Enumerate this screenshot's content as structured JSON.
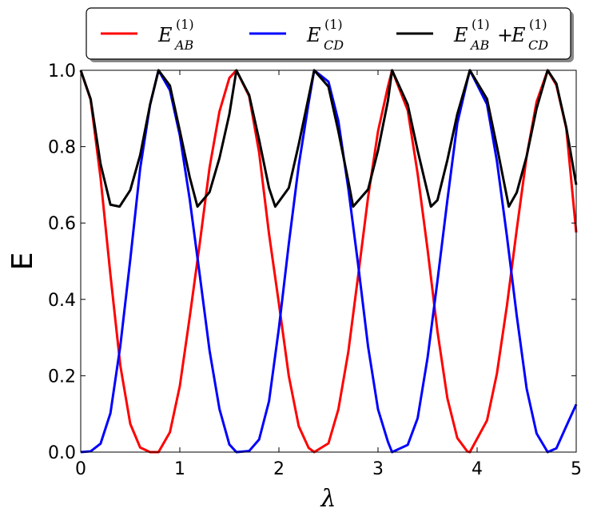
{
  "chart_data": {
    "type": "line",
    "xlabel": "λ",
    "ylabel": "E",
    "xlim": [
      0,
      5
    ],
    "ylim": [
      0,
      1
    ],
    "x_ticks": [
      "0",
      "1",
      "2",
      "3",
      "4",
      "5"
    ],
    "y_ticks": [
      "0.0",
      "0.2",
      "0.4",
      "0.6",
      "0.8",
      "1.0"
    ],
    "grid": false,
    "legend_placement": "top, outside plot, single row",
    "series": [
      {
        "key": "ab",
        "color": "#ff0000",
        "legend": {
          "base": "E",
          "sup": "(1)",
          "sub": "AB"
        },
        "formula": "cos^4(2λ)",
        "x": [
          0,
          0.1,
          0.2,
          0.3,
          0.4,
          0.5,
          0.6,
          0.7,
          0.785,
          0.9,
          1.0,
          1.1,
          1.2,
          1.3,
          1.4,
          1.5,
          1.571,
          1.7,
          1.8,
          1.9,
          2.0,
          2.1,
          2.2,
          2.3,
          2.356,
          2.5,
          2.6,
          2.7,
          2.8,
          2.9,
          3.0,
          3.1,
          3.142,
          3.3,
          3.4,
          3.5,
          3.6,
          3.7,
          3.8,
          3.9,
          3.927,
          4.1,
          4.2,
          4.3,
          4.4,
          4.5,
          4.6,
          4.712,
          4.8,
          4.9,
          5.0
        ],
        "y": [
          1,
          0.923,
          0.719,
          0.464,
          0.226,
          0.074,
          0.012,
          0.0,
          0.0,
          0.052,
          0.173,
          0.354,
          0.544,
          0.745,
          0.892,
          0.98,
          1.0,
          0.932,
          0.785,
          0.572,
          0.389,
          0.199,
          0.068,
          0.011,
          0.0,
          0.023,
          0.112,
          0.262,
          0.463,
          0.668,
          0.84,
          0.957,
          1.0,
          0.895,
          0.729,
          0.531,
          0.316,
          0.141,
          0.037,
          0.002,
          0.0,
          0.083,
          0.206,
          0.382,
          0.583,
          0.775,
          0.917,
          1.0,
          0.961,
          0.848,
          0.575
        ]
      },
      {
        "key": "cd",
        "color": "#0000ff",
        "legend": {
          "base": "E",
          "sup": "(1)",
          "sub": "CD"
        },
        "formula": "sin^4(2λ)",
        "x": [
          0,
          0.1,
          0.2,
          0.3,
          0.4,
          0.5,
          0.6,
          0.7,
          0.785,
          0.9,
          1.0,
          1.1,
          1.2,
          1.3,
          1.4,
          1.5,
          1.571,
          1.7,
          1.8,
          1.9,
          2.0,
          2.1,
          2.2,
          2.3,
          2.356,
          2.5,
          2.6,
          2.7,
          2.8,
          2.9,
          3.0,
          3.1,
          3.142,
          3.3,
          3.4,
          3.5,
          3.6,
          3.7,
          3.8,
          3.9,
          3.927,
          4.1,
          4.2,
          4.3,
          4.4,
          4.5,
          4.6,
          4.712,
          4.8,
          4.9,
          5.0
        ],
        "y": [
          0,
          0.002,
          0.022,
          0.102,
          0.279,
          0.504,
          0.743,
          0.91,
          1.0,
          0.948,
          0.83,
          0.662,
          0.466,
          0.266,
          0.113,
          0.02,
          0.0,
          0.003,
          0.033,
          0.133,
          0.325,
          0.546,
          0.751,
          0.915,
          1.0,
          0.97,
          0.867,
          0.691,
          0.49,
          0.276,
          0.112,
          0.027,
          0.0,
          0.019,
          0.089,
          0.247,
          0.449,
          0.66,
          0.861,
          0.972,
          1.0,
          0.911,
          0.762,
          0.567,
          0.357,
          0.166,
          0.049,
          0.0,
          0.01,
          0.068,
          0.125
        ]
      },
      {
        "key": "sum",
        "color": "#000000",
        "legend": {
          "base1": "E",
          "sup1": "(1)",
          "sub1": "AB",
          "plus": "+",
          "base2": "E",
          "sup2": "(1)",
          "sub2": "CD"
        },
        "formula": "cos^4(2λ)+sin^4(2λ)",
        "x": [
          0,
          0.1,
          0.2,
          0.3,
          0.392,
          0.5,
          0.6,
          0.7,
          0.785,
          0.9,
          1.0,
          1.1,
          1.178,
          1.3,
          1.4,
          1.5,
          1.571,
          1.7,
          1.8,
          1.9,
          1.963,
          2.1,
          2.2,
          2.3,
          2.356,
          2.5,
          2.6,
          2.7,
          2.749,
          2.9,
          3.0,
          3.1,
          3.142,
          3.3,
          3.4,
          3.534,
          3.6,
          3.7,
          3.8,
          3.9,
          3.927,
          4.1,
          4.2,
          4.32,
          4.4,
          4.5,
          4.6,
          4.712,
          4.8,
          4.9,
          5.0
        ],
        "y": [
          1,
          0.925,
          0.755,
          0.648,
          0.643,
          0.686,
          0.778,
          0.91,
          1.0,
          0.96,
          0.842,
          0.72,
          0.643,
          0.681,
          0.77,
          0.885,
          1.0,
          0.935,
          0.818,
          0.692,
          0.643,
          0.692,
          0.806,
          0.93,
          1.0,
          0.957,
          0.84,
          0.71,
          0.643,
          0.688,
          0.79,
          0.92,
          1.0,
          0.91,
          0.79,
          0.643,
          0.66,
          0.765,
          0.885,
          0.975,
          1.0,
          0.925,
          0.8,
          0.643,
          0.68,
          0.775,
          0.9,
          1.0,
          0.965,
          0.85,
          0.7
        ]
      }
    ]
  }
}
